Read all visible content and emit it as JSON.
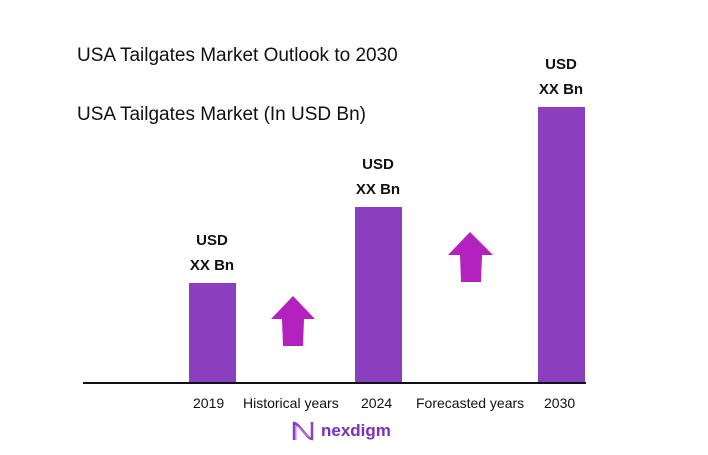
{
  "chart_data": {
    "type": "bar",
    "title": "USA Tailgates Market Outlook to 2030",
    "subtitle": "USA Tailgates Market (In USD Bn)",
    "categories": [
      "2019",
      "2024",
      "2030"
    ],
    "values": [
      1.0,
      1.76,
      2.76
    ],
    "data_labels": [
      [
        "USD",
        "XX Bn"
      ],
      [
        "USD",
        "XX Bn"
      ],
      [
        "USD",
        "XX Bn"
      ]
    ],
    "period_labels": [
      "Historical years",
      "Forecasted years"
    ],
    "ylim": [
      0,
      2.76
    ],
    "grid": false,
    "bar_color": "#8a3fbf",
    "arrow_color": "#b321bf"
  },
  "brand": "nexdigm"
}
